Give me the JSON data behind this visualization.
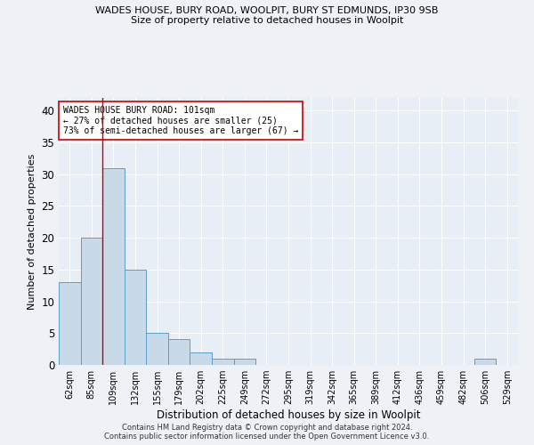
{
  "title1": "WADES HOUSE, BURY ROAD, WOOLPIT, BURY ST EDMUNDS, IP30 9SB",
  "title2": "Size of property relative to detached houses in Woolpit",
  "xlabel": "Distribution of detached houses by size in Woolpit",
  "ylabel": "Number of detached properties",
  "categories": [
    "62sqm",
    "85sqm",
    "109sqm",
    "132sqm",
    "155sqm",
    "179sqm",
    "202sqm",
    "225sqm",
    "249sqm",
    "272sqm",
    "295sqm",
    "319sqm",
    "342sqm",
    "365sqm",
    "389sqm",
    "412sqm",
    "436sqm",
    "459sqm",
    "482sqm",
    "506sqm",
    "529sqm"
  ],
  "values": [
    13,
    20,
    31,
    15,
    5,
    4,
    2,
    1,
    1,
    0,
    0,
    0,
    0,
    0,
    0,
    0,
    0,
    0,
    0,
    1,
    0
  ],
  "bar_color": "#c8d9e8",
  "bar_edge_color": "#5a9ec9",
  "vline_x": 1.5,
  "vline_color": "#cc0000",
  "annotation_text": "WADES HOUSE BURY ROAD: 101sqm\n← 27% of detached houses are smaller (25)\n73% of semi-detached houses are larger (67) →",
  "annotation_box_color": "white",
  "annotation_box_edge": "#cc0000",
  "ylim": [
    0,
    42
  ],
  "yticks": [
    0,
    5,
    10,
    15,
    20,
    25,
    30,
    35,
    40
  ],
  "footer1": "Contains HM Land Registry data © Crown copyright and database right 2024.",
  "footer2": "Contains public sector information licensed under the Open Government Licence v3.0.",
  "bg_color": "#eef2f7",
  "plot_bg_color": "#e8eef5"
}
